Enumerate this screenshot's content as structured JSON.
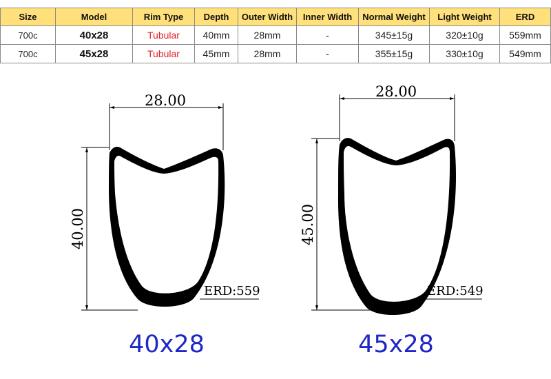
{
  "table": {
    "headers": [
      "Size",
      "Model",
      "Rim Type",
      "Depth",
      "Outer Width",
      "Inner Width",
      "Normal Weight",
      "Light Weight",
      "ERD"
    ],
    "rows": [
      [
        "700c",
        "40x28",
        "Tubular",
        "40mm",
        "28mm",
        "-",
        "345±15g",
        "320±10g",
        "559mm"
      ],
      [
        "700c",
        "45x28",
        "Tubular",
        "45mm",
        "28mm",
        "-",
        "355±15g",
        "330±10g",
        "549mm"
      ]
    ]
  },
  "diagrams": [
    {
      "width_label": "28.00",
      "depth_label": "40.00",
      "erd_label": "ERD:559",
      "caption": "40x28"
    },
    {
      "width_label": "28.00",
      "depth_label": "45.00",
      "erd_label": "ERD:549",
      "caption": "45x28"
    }
  ],
  "colors": {
    "header_bg": "#ffe07a",
    "rim_type_text": "#e0202a",
    "caption_text": "#1f27c4",
    "outline": "#000000"
  }
}
